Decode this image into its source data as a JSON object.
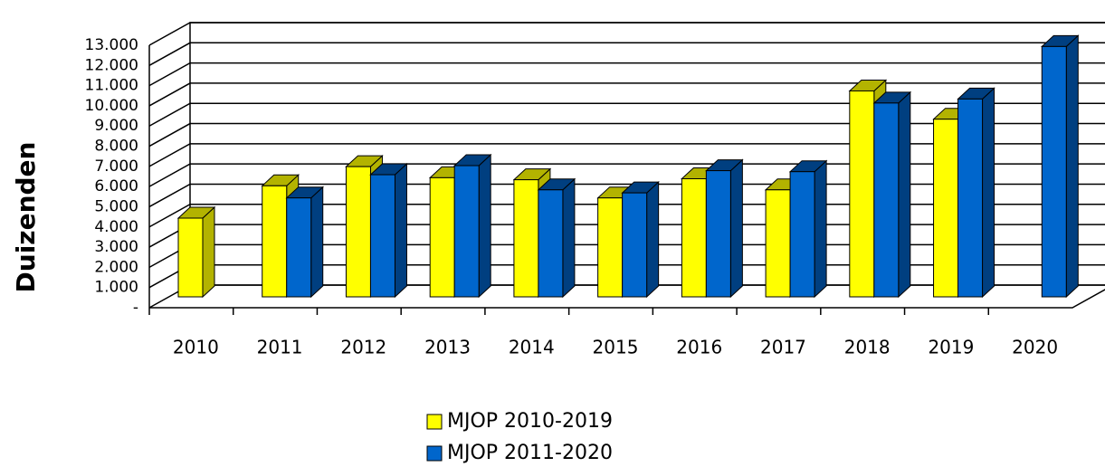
{
  "chart_data": {
    "type": "bar3d",
    "y_label": "Duizenden",
    "categories": [
      "2010",
      "2011",
      "2012",
      "2013",
      "2014",
      "2015",
      "2016",
      "2017",
      "2018",
      "2019",
      "2020"
    ],
    "series": [
      {
        "name": "MJOP 2010-2019",
        "color": "#ffff00",
        "side_color": "#b3b300",
        "values": [
          3900,
          5500,
          6450,
          5900,
          5800,
          4900,
          5850,
          5300,
          10200,
          8800,
          null
        ]
      },
      {
        "name": "MJOP 2011-2020",
        "color": "#0066cc",
        "side_color": "#003f80",
        "values": [
          null,
          4900,
          6050,
          6500,
          5300,
          5150,
          6250,
          6200,
          9600,
          9800,
          12400
        ]
      }
    ],
    "ylim": [
      0,
      13000
    ],
    "yticks": [
      {
        "value": 0,
        "label": "-"
      },
      {
        "value": 1000,
        "label": "1.000"
      },
      {
        "value": 2000,
        "label": "2.000"
      },
      {
        "value": 3000,
        "label": "3.000"
      },
      {
        "value": 4000,
        "label": "4.000"
      },
      {
        "value": 5000,
        "label": "5.000"
      },
      {
        "value": 6000,
        "label": "6.000"
      },
      {
        "value": 7000,
        "label": "7.000"
      },
      {
        "value": 8000,
        "label": "8.000"
      },
      {
        "value": 9000,
        "label": "9.000"
      },
      {
        "value": 10000,
        "label": "10.000"
      },
      {
        "value": 11000,
        "label": "11.000"
      },
      {
        "value": 12000,
        "label": "12.000"
      },
      {
        "value": 13000,
        "label": "13.000"
      }
    ],
    "grid": true,
    "legend": "bottom"
  }
}
